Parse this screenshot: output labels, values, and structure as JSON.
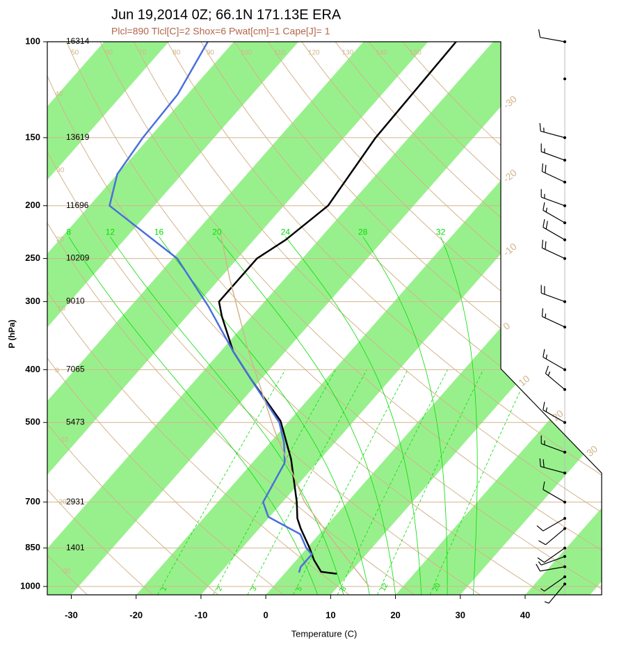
{
  "chart_data": {
    "type": "skewt",
    "title": "Jun 19,2014 0Z; 66.1N 171.13E ERA",
    "subtitle": "Plcl=890 Tlcl[C]=2 Shox=6 Pwat[cm]=1 Cape[J]= 1",
    "xlabel": "Temperature (C)",
    "ylabel": "P (hPa)",
    "xlim": [
      -33.7,
      51.8
    ],
    "xticks": [
      -30,
      -20,
      -10,
      0,
      10,
      20,
      30,
      40
    ],
    "ylim": [
      100,
      1036
    ],
    "log_y": true,
    "yticks": [
      100,
      150,
      200,
      250,
      300,
      400,
      500,
      700,
      850,
      1000
    ],
    "heights": [
      16314,
      13619,
      11696,
      10209,
      9010,
      7065,
      5473,
      2931,
      1401
    ],
    "series": [
      {
        "color": "#000000",
        "pressure": [
          948,
          940,
          894,
          850,
          783,
          750,
          700,
          584,
          497,
          416,
          370,
          319,
          300,
          250,
          231,
          200,
          150,
          100
        ],
        "values": [
          8.1,
          5.4,
          2.7,
          0.4,
          -3.6,
          -5.5,
          -7.8,
          -14.5,
          -21.3,
          -31.6,
          -38.1,
          -44.6,
          -47.0,
          -47.0,
          -45.1,
          -43.2,
          -45.1,
          -45.7
        ]
      },
      {
        "color": "#4a6fdc",
        "pressure": [
          943,
          921,
          873,
          850,
          802,
          745,
          700,
          593,
          545,
          500,
          416,
          370,
          306,
          250,
          200,
          175,
          150,
          125,
          100
        ],
        "values": [
          2.1,
          1.6,
          1.6,
          -0.1,
          -2.9,
          -10.2,
          -13.0,
          -15.0,
          -17.8,
          -21.3,
          -31.6,
          -38.1,
          -48.0,
          -59.3,
          -76.9,
          -80.0,
          -81.0,
          -81.5,
          -84.0
        ]
      },
      {
        "color": "#d2b48c",
        "pressure": [
          1000,
          831,
          700,
          519,
          365,
          272,
          226
        ],
        "values": [
          14.8,
          3.5,
          -6.6,
          -20.8,
          -36.3,
          -48.5,
          -55.8
        ]
      }
    ],
    "band_color": "#98f08c",
    "isotherms": [
      -30,
      -20,
      -10,
      0,
      10,
      20,
      30
    ],
    "dry_adiabats": [
      -30,
      -20,
      -10,
      0,
      10,
      20,
      30,
      40,
      50,
      60,
      70,
      80,
      90,
      100,
      110,
      120,
      130,
      140,
      150
    ],
    "adiabat_color": "#d2b48c",
    "moist_adiabats": [
      8,
      12,
      16,
      20,
      24,
      28,
      32
    ],
    "mixing_ratios": [
      1,
      2,
      3,
      5,
      8,
      12,
      20
    ],
    "moist_color": "#00dd00",
    "winds": {
      "pressure": [
        100,
        117,
        150,
        165,
        181,
        200,
        215,
        231,
        250,
        300,
        334,
        400,
        435,
        500,
        567,
        619,
        700,
        750,
        783,
        850,
        881,
        920,
        960,
        990
      ],
      "direction": [
        280,
        0,
        285,
        290,
        295,
        290,
        300,
        300,
        295,
        290,
        295,
        300,
        310,
        300,
        290,
        285,
        300,
        240,
        230,
        235,
        250,
        260,
        235,
        220
      ],
      "speed": [
        10,
        0,
        15,
        15,
        20,
        15,
        15,
        20,
        20,
        20,
        15,
        15,
        15,
        15,
        15,
        20,
        10,
        10,
        10,
        10,
        5,
        10,
        5,
        5
      ]
    }
  }
}
